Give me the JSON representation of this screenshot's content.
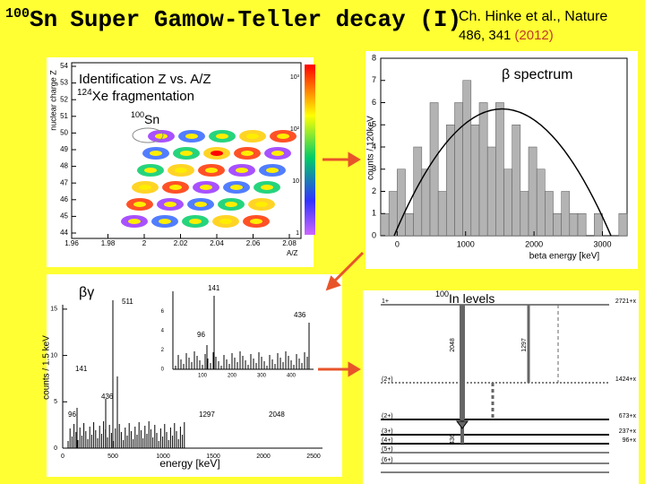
{
  "header": {
    "title_mass": "100",
    "title_element": "Sn",
    "title": "Super Gamow-Teller decay (I)",
    "citation": "Ch. Hinke et al., Nature",
    "citation_ref": "486, 341",
    "citation_year": "(2012)"
  },
  "identification": {
    "title": "Identification Z vs. A/Z",
    "beam_mass": "124",
    "beam": "Xe fragmentation",
    "label_mass": "100",
    "label": "Sn",
    "y_label": "nuclear charge Z",
    "x_label": "A/Z",
    "yticks": [
      54,
      53,
      52,
      51,
      50,
      49,
      48,
      47,
      46,
      45,
      44
    ],
    "xticks": [
      1.96,
      1.98,
      2,
      2.02,
      2.04,
      2.06,
      2.08
    ],
    "scale_ticks": [
      "10³",
      "10²",
      "10",
      "1"
    ]
  },
  "chart_data": {
    "type": "histogram",
    "title": "β spectrum",
    "x_label": "beta energy [keV]",
    "y_label": "counts / 120keV",
    "color": "#b3b3b3",
    "bins": [
      -240,
      -120,
      0,
      120,
      240,
      360,
      480,
      600,
      720,
      840,
      960,
      1080,
      1200,
      1320,
      1440,
      1560,
      1680,
      1800,
      1920,
      2040,
      2160,
      2280,
      2400,
      2520,
      2640,
      2760,
      2880,
      3000,
      3120,
      3240,
      3360
    ],
    "values": [
      1,
      2,
      3,
      1,
      4,
      3,
      6,
      2,
      5,
      6,
      7,
      5,
      6,
      4,
      6,
      3,
      5,
      2,
      4,
      3,
      2,
      1,
      2,
      1,
      1,
      0,
      1,
      0,
      0,
      1
    ],
    "xlim": [
      -240,
      3360
    ],
    "ylim": [
      0,
      8
    ],
    "xticks": [
      0,
      1000,
      2000,
      3000
    ],
    "yticks": [
      0,
      1,
      2,
      3,
      4,
      5,
      6,
      7,
      8
    ]
  },
  "gamma": {
    "title": "βγ",
    "y_label": "counts / 1.5 keV",
    "x_label": "energy [keV]",
    "xticks": [
      0,
      500,
      1000,
      1500,
      2000,
      2500
    ],
    "yticks": [
      0,
      5,
      10,
      15
    ],
    "peaks": [
      "511",
      "141",
      "436",
      "96",
      "1297",
      "2048"
    ],
    "inset_xticks": [
      100,
      200,
      300,
      400
    ],
    "inset_yticks": [
      0,
      2,
      4,
      6
    ],
    "inset_peaks": [
      "141",
      "436",
      "96"
    ]
  },
  "levels": {
    "title_mass": "100",
    "title": "In levels",
    "spins": [
      "1+",
      "(2+)",
      "(2+)",
      "(3+)",
      "(4+)",
      "(5+)",
      "(6+)"
    ],
    "energies": [
      "2721+x",
      "1424+x",
      "673+x",
      "237+x",
      "96+x"
    ],
    "transitions": [
      "2048",
      "1297",
      "436"
    ]
  }
}
